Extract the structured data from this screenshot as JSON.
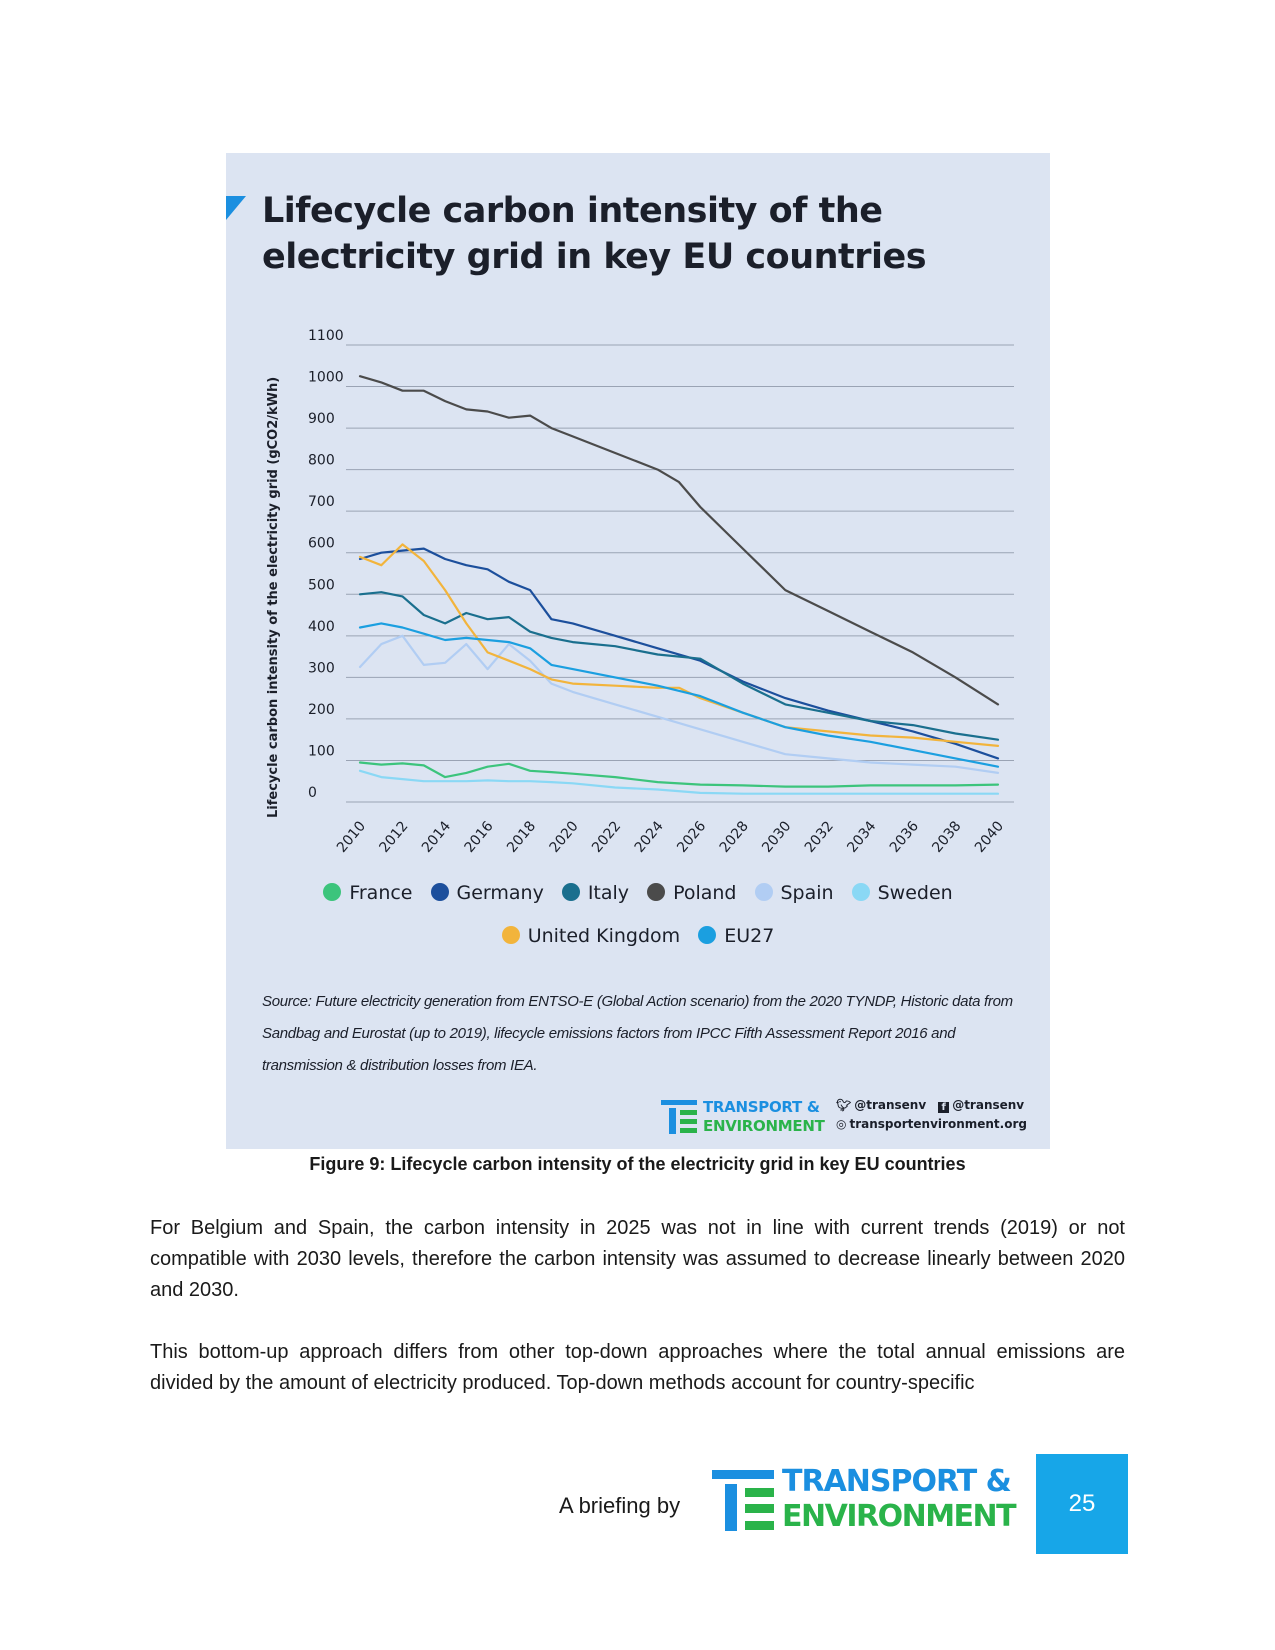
{
  "figure": {
    "title": "Lifecycle carbon intensity of the electricity grid in key EU countries",
    "source": "Source: Future electricity generation from ENTSO-E (Global Action scenario) from the 2020 TYNDP, Historic data from Sandbag and Eurostat (up to 2019), lifecycle emissions factors from IPCC Fifth Assessment Report 2016 and transmission & distribution losses from IEA.",
    "logo_line1": "TRANSPORT &",
    "logo_line2": "ENVIRONMENT",
    "twitter": "@transenv",
    "facebook": "@transenv",
    "website": "transportenvironment.org",
    "caption": "Figure 9: Lifecycle carbon intensity of the electricity grid in key EU countries"
  },
  "chart_data": {
    "type": "line",
    "title": "Lifecycle carbon intensity of the electricity grid in key EU countries",
    "xlabel": "",
    "ylabel": "Lifecycle carbon intensity of the electricity grid (gCO2/kWh)",
    "ylim": [
      0,
      1100
    ],
    "xlim": [
      2010,
      2040
    ],
    "grid": "horizontal",
    "legend_position": "bottom",
    "y_ticks": [
      "0",
      "100",
      "200",
      "300",
      "400",
      "500",
      "600",
      "700",
      "800",
      "900",
      "1000",
      "1100"
    ],
    "x_ticks": [
      "2010",
      "2012",
      "2014",
      "2016",
      "2018",
      "2020",
      "2022",
      "2024",
      "2026",
      "2028",
      "2030",
      "2032",
      "2034",
      "2036",
      "2038",
      "2040"
    ],
    "series": [
      {
        "name": "France",
        "color": "#3cc47c",
        "x": [
          2010,
          2011,
          2012,
          2013,
          2014,
          2015,
          2016,
          2017,
          2018,
          2019,
          2020,
          2022,
          2024,
          2026,
          2028,
          2030,
          2032,
          2034,
          2036,
          2038,
          2040
        ],
        "y": [
          95,
          90,
          93,
          88,
          60,
          70,
          85,
          92,
          75,
          72,
          68,
          60,
          48,
          42,
          40,
          37,
          37,
          40,
          40,
          40,
          42
        ]
      },
      {
        "name": "Germany",
        "color": "#1c4f9c",
        "x": [
          2010,
          2011,
          2012,
          2013,
          2014,
          2015,
          2016,
          2017,
          2018,
          2019,
          2020,
          2022,
          2024,
          2026,
          2028,
          2030,
          2032,
          2034,
          2036,
          2038,
          2040
        ],
        "y": [
          585,
          600,
          605,
          610,
          585,
          570,
          560,
          530,
          510,
          440,
          430,
          400,
          370,
          340,
          290,
          250,
          220,
          195,
          170,
          140,
          105
        ]
      },
      {
        "name": "Italy",
        "color": "#1a6f8e",
        "x": [
          2010,
          2011,
          2012,
          2013,
          2014,
          2015,
          2016,
          2017,
          2018,
          2019,
          2020,
          2022,
          2024,
          2026,
          2028,
          2030,
          2032,
          2034,
          2036,
          2038,
          2040
        ],
        "y": [
          500,
          505,
          495,
          450,
          430,
          455,
          440,
          445,
          410,
          395,
          385,
          375,
          355,
          345,
          285,
          235,
          215,
          195,
          185,
          165,
          150
        ]
      },
      {
        "name": "Poland",
        "color": "#4b4b4b",
        "x": [
          2010,
          2011,
          2012,
          2013,
          2014,
          2015,
          2016,
          2017,
          2018,
          2019,
          2020,
          2022,
          2024,
          2025,
          2026,
          2028,
          2030,
          2032,
          2034,
          2036,
          2038,
          2040
        ],
        "y": [
          1025,
          1010,
          990,
          990,
          965,
          945,
          940,
          925,
          930,
          900,
          880,
          840,
          800,
          770,
          710,
          610,
          510,
          460,
          410,
          360,
          300,
          235
        ]
      },
      {
        "name": "Spain",
        "color": "#b1cdf3",
        "x": [
          2010,
          2011,
          2012,
          2013,
          2014,
          2015,
          2016,
          2017,
          2018,
          2019,
          2020,
          2022,
          2024,
          2026,
          2028,
          2030,
          2032,
          2034,
          2036,
          2038,
          2040
        ],
        "y": [
          325,
          380,
          400,
          330,
          335,
          380,
          320,
          380,
          340,
          285,
          265,
          235,
          205,
          175,
          145,
          115,
          105,
          95,
          90,
          85,
          70
        ]
      },
      {
        "name": "Sweden",
        "color": "#8ad8f5",
        "x": [
          2010,
          2011,
          2012,
          2013,
          2014,
          2015,
          2016,
          2017,
          2018,
          2019,
          2020,
          2022,
          2024,
          2026,
          2028,
          2030,
          2032,
          2034,
          2036,
          2038,
          2040
        ],
        "y": [
          75,
          60,
          55,
          50,
          50,
          50,
          52,
          50,
          50,
          48,
          45,
          35,
          30,
          22,
          20,
          20,
          20,
          20,
          20,
          20,
          20
        ]
      },
      {
        "name": "United Kingdom",
        "color": "#f2b43c",
        "x": [
          2010,
          2011,
          2012,
          2013,
          2014,
          2015,
          2016,
          2017,
          2018,
          2019,
          2020,
          2022,
          2024,
          2025,
          2026,
          2028,
          2030,
          2032,
          2034,
          2036,
          2038,
          2040
        ],
        "y": [
          590,
          570,
          620,
          580,
          510,
          430,
          360,
          340,
          320,
          295,
          285,
          280,
          275,
          275,
          250,
          215,
          180,
          170,
          160,
          155,
          145,
          135
        ]
      },
      {
        "name": "EU27",
        "color": "#1b9fe0",
        "x": [
          2010,
          2011,
          2012,
          2013,
          2014,
          2015,
          2016,
          2017,
          2018,
          2019,
          2020,
          2022,
          2024,
          2026,
          2028,
          2030,
          2032,
          2034,
          2036,
          2038,
          2040
        ],
        "y": [
          420,
          430,
          420,
          405,
          390,
          395,
          390,
          385,
          370,
          330,
          320,
          300,
          280,
          255,
          215,
          180,
          160,
          145,
          125,
          105,
          85
        ]
      }
    ]
  },
  "legend": {
    "row1": [
      "France",
      "Germany",
      "Italy",
      "Poland",
      "Spain",
      "Sweden"
    ],
    "row2": [
      "United Kingdom",
      "EU27"
    ]
  },
  "body": {
    "para1": "For Belgium and Spain, the carbon intensity in 2025 was not in line with current trends (2019) or not compatible with 2030 levels, therefore the carbon intensity was assumed to decrease linearly between 2020 and 2030.",
    "para2": "This bottom-up approach differs from other top-down approaches where the total annual emissions are divided by the amount of electricity produced. Top-down methods account for country-specific"
  },
  "footer": {
    "briefing_text": "A briefing by",
    "logo_line1": "TRANSPORT &",
    "logo_line2": "ENVIRONMENT",
    "page_number": "25"
  }
}
